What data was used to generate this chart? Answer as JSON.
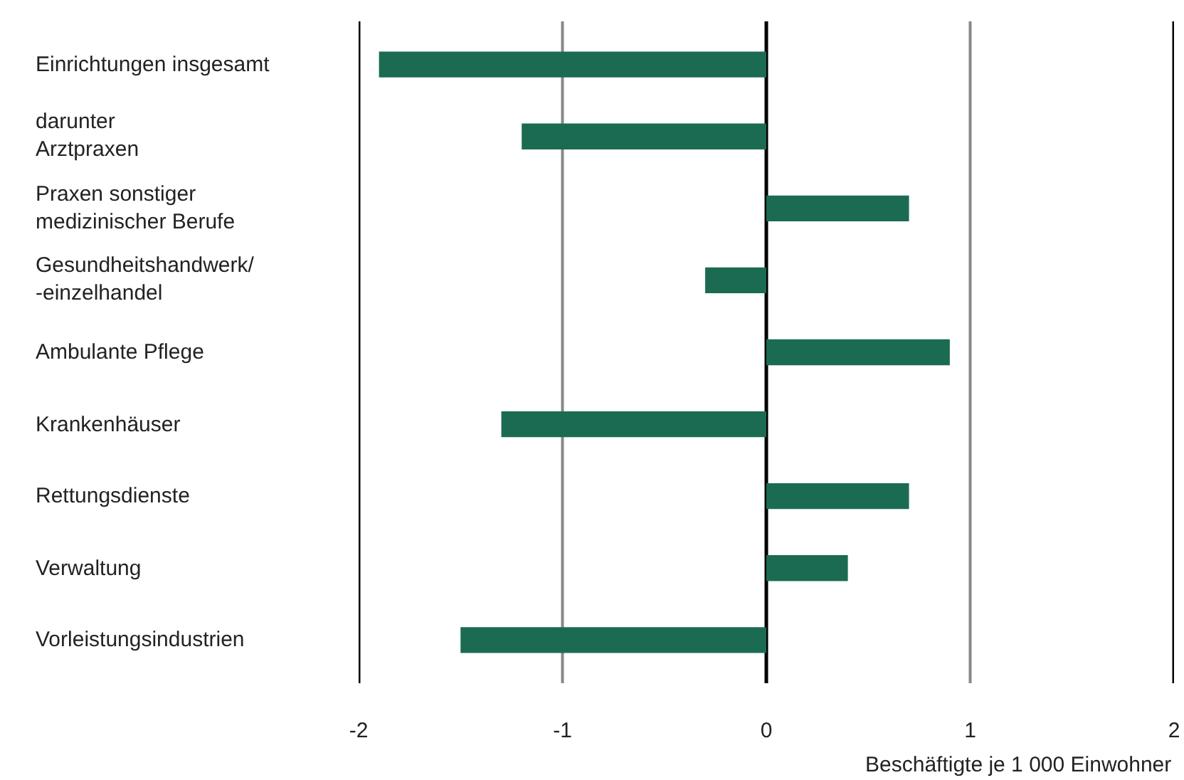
{
  "chart_data": {
    "type": "bar",
    "orientation": "horizontal",
    "xlabel": "Beschäftigte je 1 000 Einwohner",
    "categories": [
      "Einrichtungen insgesamt",
      "darunter\nArztpraxen",
      "Praxen sonstiger\nmedizinischer Berufe",
      "Gesundheitshandwerk/\n-einzelhandel",
      "Ambulante Pflege",
      "Krankenhäuser",
      "Rettungsdienste",
      "Verwaltung",
      "Vorleistungsindustrien"
    ],
    "values": [
      -1.9,
      -1.2,
      0.7,
      -0.3,
      0.9,
      -1.3,
      0.7,
      0.4,
      -1.5
    ],
    "color": "#1b6b52",
    "xlim": [
      -2,
      2
    ],
    "xticks": [
      -2,
      -1,
      0,
      1,
      2
    ],
    "grid": "x",
    "legend": false
  }
}
